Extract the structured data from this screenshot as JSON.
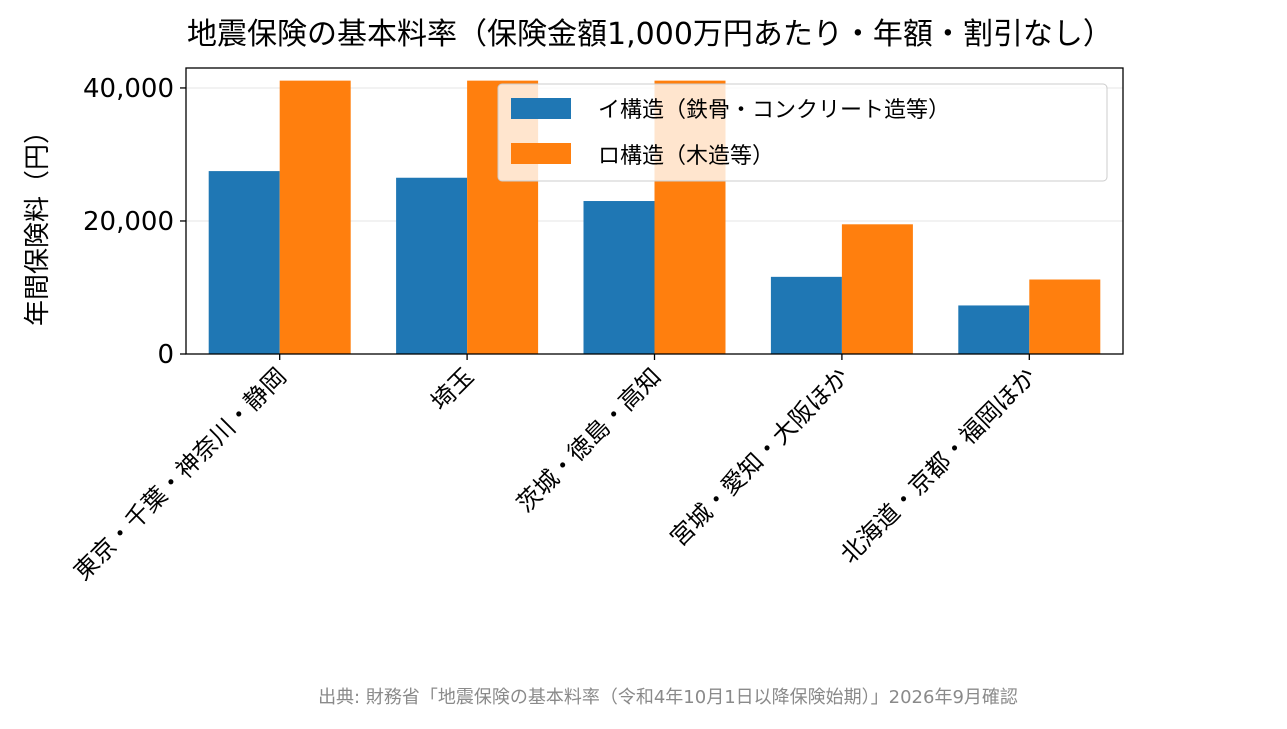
{
  "chart_data": {
    "type": "bar",
    "title": "地震保険の基本料率（保険金額1,000万円あたり・年額・割引なし）",
    "xlabel": "",
    "ylabel": "年間保険料（円）",
    "categories": [
      "東京・千葉・神奈川・静岡",
      "埼玉",
      "茨城・徳島・高知",
      "宮城・愛知・大阪ほか",
      "北海道・京都・福岡ほか"
    ],
    "series": [
      {
        "name": "イ構造（鉄骨・コンクリート造等）",
        "values": [
          27500,
          26500,
          23000,
          11600,
          7300
        ],
        "color": "#1f77b4"
      },
      {
        "name": "ロ構造（木造等）",
        "values": [
          41100,
          41100,
          41100,
          19500,
          11200
        ],
        "color": "#ff7f0e"
      }
    ],
    "ylim": [
      0,
      43000
    ],
    "yticks": [
      0,
      20000,
      40000
    ],
    "ytick_labels": [
      "0",
      "20,000",
      "40,000"
    ],
    "grid": "y",
    "legend_position": "top-right"
  },
  "source": "出典: 財務省「地震保険の基本料率（令和4年10月1日以降保険始期）」2026年9月確認"
}
